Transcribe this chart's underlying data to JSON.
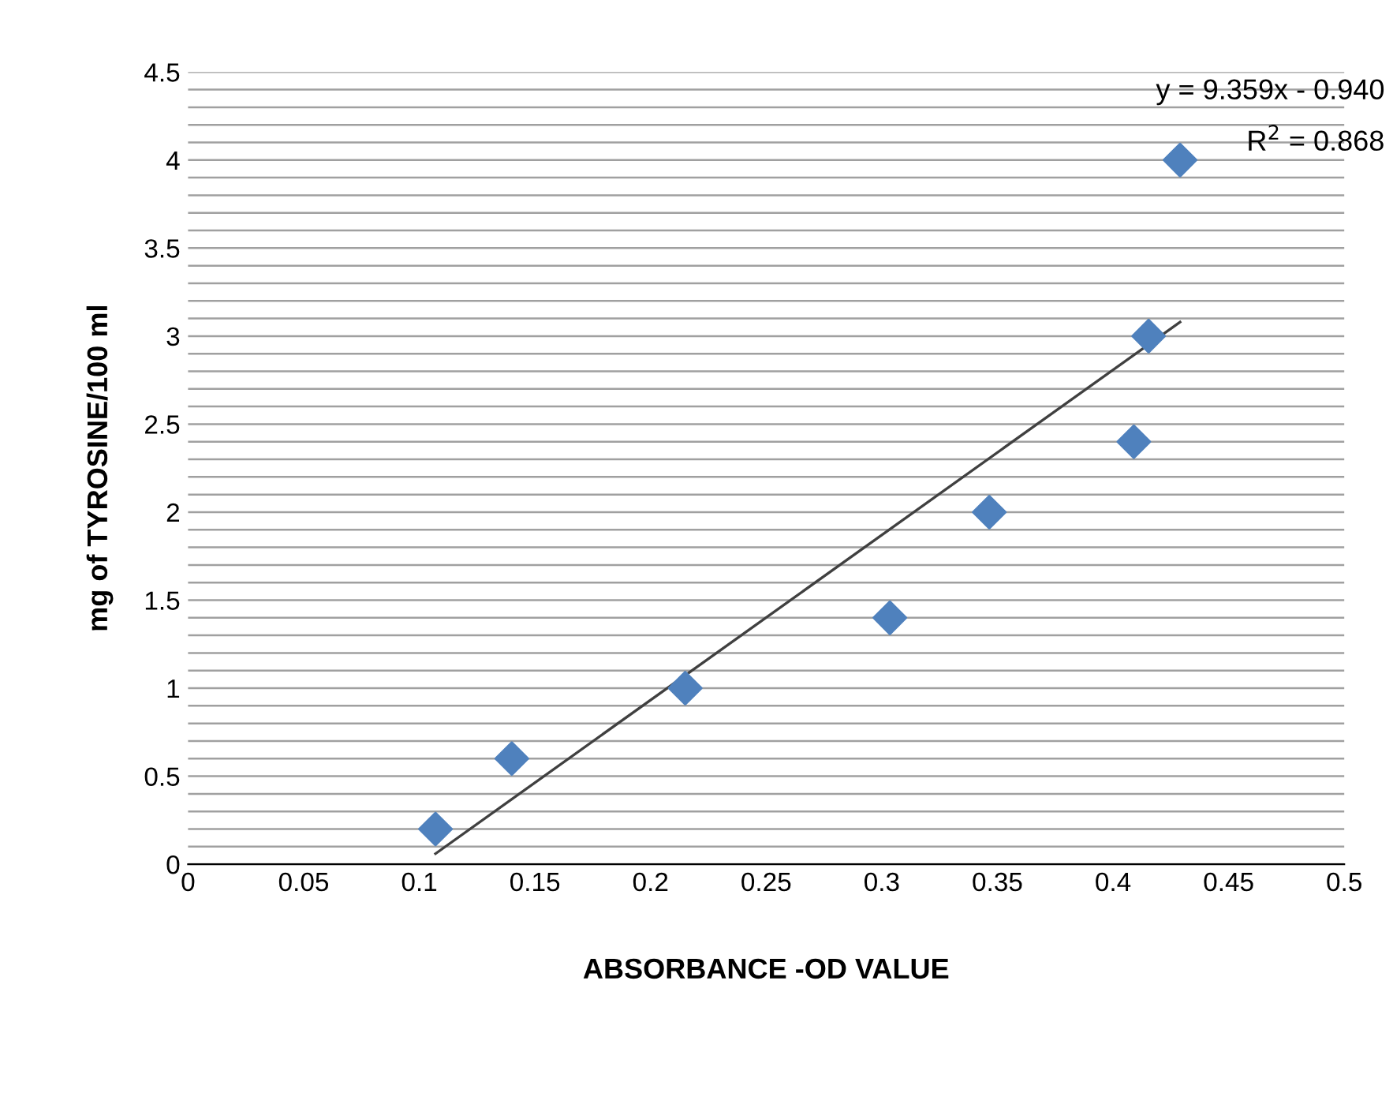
{
  "chart_data": {
    "type": "scatter",
    "xlabel": "ABSORBANCE -OD VALUE",
    "ylabel": "mg of TYROSINE/100 ml",
    "xlim": [
      0,
      0.5
    ],
    "ylim": [
      0,
      4.5
    ],
    "xticks": [
      0,
      0.05,
      0.1,
      0.15,
      0.2,
      0.25,
      0.3,
      0.35,
      0.4,
      0.45,
      0.5
    ],
    "yticks": [
      0,
      0.5,
      1,
      1.5,
      2,
      2.5,
      3,
      3.5,
      4,
      4.5
    ],
    "grid": "y",
    "marker": "diamond",
    "series": [
      {
        "color": "#4f81bd",
        "x": [
          0.107,
          0.14,
          0.215,
          0.3035,
          0.3465,
          0.409,
          0.4154,
          0.429
        ],
        "values": [
          0.2,
          0.6,
          1.0,
          1.4,
          2.0,
          2.4,
          3.0,
          4.0
        ]
      },
      {
        "type": "line",
        "color": "#404040",
        "marker": "none",
        "x": [
          0.107,
          0.429
        ],
        "values": [
          0.06,
          3.08
        ]
      }
    ],
    "annotations": [
      "y = 9.359x - 0.940",
      "R$^{2}$ = 0.868"
    ]
  }
}
